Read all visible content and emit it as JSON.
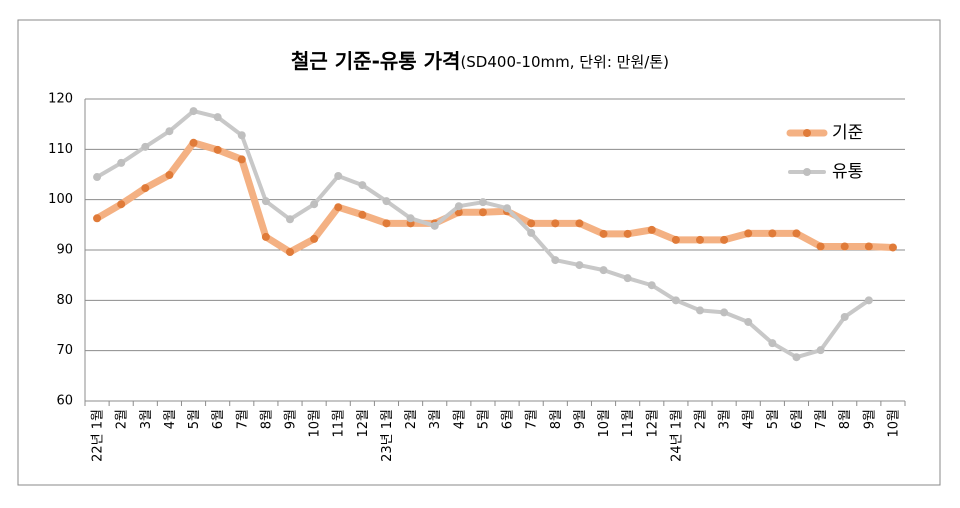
{
  "chart_data": {
    "type": "line",
    "title": "철근 기준-유통 가격",
    "subtitle": "(SD400-10mm, 단위: 만원/톤)",
    "categories": [
      "22년 1월",
      "2월",
      "3월",
      "4월",
      "5월",
      "6월",
      "7월",
      "8월",
      "9월",
      "10월",
      "11월",
      "12월",
      "23년 1월",
      "2월",
      "3월",
      "4월",
      "5월",
      "6월",
      "7월",
      "8월",
      "9월",
      "10월",
      "11월",
      "12월",
      "24년 1월",
      "2월",
      "3월",
      "4월",
      "5월",
      "6월",
      "7월",
      "8월",
      "9월",
      "10월"
    ],
    "series": [
      {
        "name": "기준",
        "color": "#e07b39",
        "line_color": "#f4b183",
        "values": [
          96.3,
          99.1,
          102.3,
          104.9,
          111.3,
          109.9,
          108,
          92.6,
          89.6,
          92.2,
          98.5,
          97,
          95.3,
          95.3,
          95.3,
          97.5,
          97.5,
          97.7,
          95.3,
          95.3,
          95.3,
          93.2,
          93.2,
          94,
          92,
          92,
          92,
          93.3,
          93.3,
          93.3,
          90.7,
          90.7,
          90.7,
          90.5
        ]
      },
      {
        "name": "유통",
        "color": "#bfbfbf",
        "line_color": "#c8c8c8",
        "values": [
          104.5,
          107.3,
          110.5,
          113.6,
          117.6,
          116.4,
          112.8,
          99.7,
          96.1,
          99.1,
          104.7,
          102.9,
          99.7,
          96.3,
          94.8,
          98.7,
          99.5,
          98.3,
          93.4,
          88,
          87,
          86,
          84.4,
          83,
          80,
          78,
          77.6,
          75.7,
          71.5,
          68.7,
          70.1,
          76.7,
          80,
          null
        ]
      }
    ],
    "ylim": [
      60,
      120
    ],
    "yticks": [
      60,
      70,
      80,
      90,
      100,
      110,
      120
    ],
    "grid": true,
    "legend": "upper right"
  }
}
